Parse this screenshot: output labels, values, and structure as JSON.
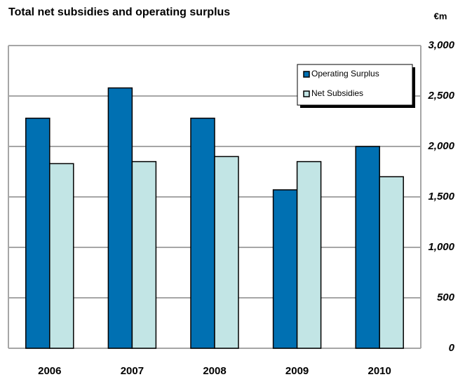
{
  "chart_data": {
    "type": "bar",
    "title": "Total net subsidies and operating surplus",
    "unit_label": "€m",
    "categories": [
      "2006",
      "2007",
      "2008",
      "2009",
      "2010"
    ],
    "series": [
      {
        "name": "Operating Surplus",
        "color": "#0070b2",
        "values": [
          2280,
          2580,
          2280,
          1570,
          2000
        ]
      },
      {
        "name": "Net Subsidies",
        "color": "#c2e5e5",
        "values": [
          1830,
          1850,
          1900,
          1850,
          1700
        ]
      }
    ],
    "ylim": [
      0,
      3000
    ],
    "yticks": [
      0,
      500,
      {
        "value": 1000,
        "label": "1,000"
      },
      {
        "value": 1500,
        "label": "1,500"
      },
      {
        "value": 2000,
        "label": "2,000"
      },
      {
        "value": 2500,
        "label": "2,500"
      },
      {
        "value": 3000,
        "label": "3,000"
      }
    ],
    "grid": true,
    "legend_position": "top-right"
  }
}
